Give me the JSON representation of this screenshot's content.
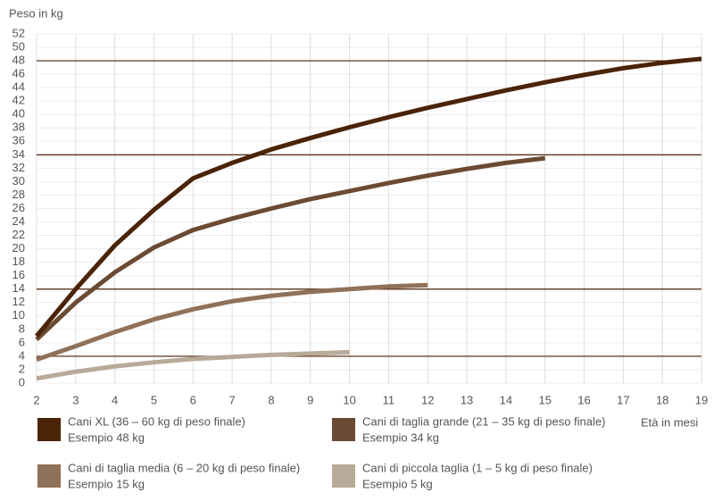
{
  "chart_data": {
    "type": "line",
    "y_label": "Peso in kg",
    "x_label": "Età in mesi",
    "x": [
      2,
      3,
      4,
      5,
      6,
      7,
      8,
      9,
      10,
      11,
      12,
      13,
      14,
      15,
      16,
      17,
      18,
      19
    ],
    "series": [
      {
        "name": "Cani XL (36 – 60 kg di peso finale)",
        "example": "Esempio 48 kg",
        "color": "#4b2307",
        "values": [
          7,
          14,
          20.5,
          25.8,
          30.5,
          32.8,
          34.8,
          36.5,
          38.1,
          39.6,
          41,
          42.3,
          43.6,
          44.8,
          45.9,
          46.9,
          47.7,
          48.3
        ]
      },
      {
        "name": "Cani di taglia grande (21 – 35 kg di peso finale)",
        "example": "Esempio 34 kg",
        "color": "#6b4a33",
        "values": [
          6.5,
          12,
          16.5,
          20.2,
          22.8,
          24.5,
          26,
          27.4,
          28.6,
          29.8,
          30.9,
          31.9,
          32.8,
          33.5,
          null,
          null,
          null,
          null
        ]
      },
      {
        "name": "Cani di taglia media (6 – 20 kg di peso finale)",
        "example": "Esempio 15 kg",
        "color": "#8f7159",
        "values": [
          3.5,
          5.5,
          7.6,
          9.5,
          11,
          12.2,
          13,
          13.6,
          14,
          14.4,
          14.6,
          null,
          null,
          null,
          null,
          null,
          null,
          null
        ]
      },
      {
        "name": "Cani di piccola taglia (1 – 5 kg di peso finale)",
        "example": "Esempio 5 kg",
        "color": "#b9a999",
        "values": [
          0.7,
          1.7,
          2.5,
          3.1,
          3.6,
          3.9,
          4.2,
          4.4,
          4.6,
          null,
          null,
          null,
          null,
          null,
          null,
          null,
          null,
          null
        ]
      }
    ],
    "reference_lines": [
      48,
      34,
      14,
      4
    ],
    "reference_color": "#4b2307",
    "xlim": [
      2,
      19
    ],
    "xticks": [
      2,
      3,
      4,
      5,
      6,
      7,
      8,
      9,
      10,
      11,
      12,
      13,
      14,
      15,
      16,
      17,
      18,
      19
    ],
    "ylim": [
      0,
      52
    ],
    "yticks": [
      0,
      2,
      4,
      6,
      8,
      10,
      12,
      14,
      16,
      18,
      20,
      22,
      24,
      26,
      28,
      30,
      32,
      34,
      36,
      38,
      40,
      42,
      44,
      46,
      48,
      50,
      52
    ],
    "grid": true
  }
}
